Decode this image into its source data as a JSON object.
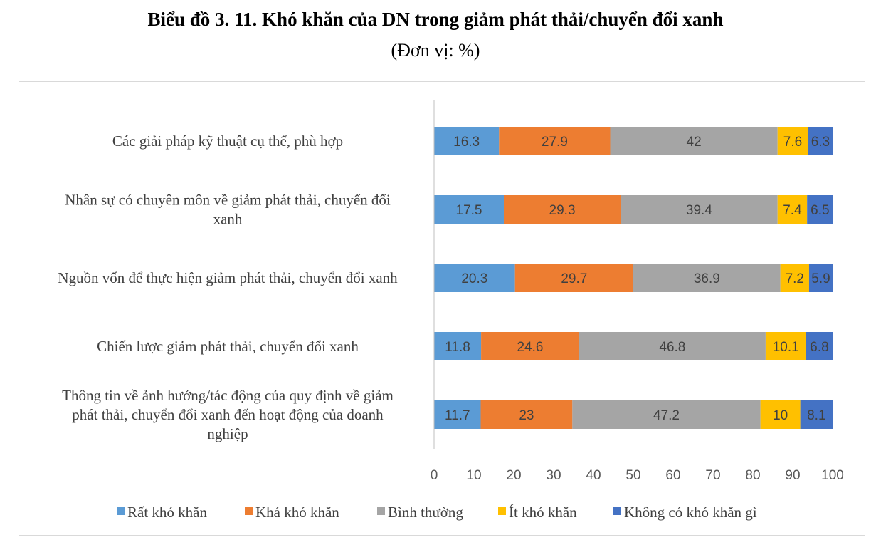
{
  "header": {
    "title": "Biểu đồ 3. 11. Khó khăn của DN trong giảm phát thải/chuyển đổi xanh",
    "subtitle": "(Đơn vị: %)"
  },
  "chart_data": {
    "type": "bar",
    "orientation": "horizontal",
    "stacked": true,
    "title": "Biểu đồ 3. 11. Khó khăn của DN trong giảm phát thải/chuyển đổi xanh",
    "subtitle": "(Đơn vị: %)",
    "xlabel": "",
    "ylabel": "",
    "xlim": [
      0,
      100
    ],
    "xticks": [
      0,
      10,
      20,
      30,
      40,
      50,
      60,
      70,
      80,
      90,
      100
    ],
    "grid": false,
    "legend_position": "bottom",
    "categories": [
      {
        "lines": [
          "Các giải pháp kỹ thuật cụ thể, phù hợp"
        ]
      },
      {
        "lines": [
          "Nhân sự có chuyên môn về giảm phát thải, chuyển đổi",
          "xanh"
        ]
      },
      {
        "lines": [
          "Nguồn vốn để thực hiện giảm phát thải, chuyển đổi xanh"
        ]
      },
      {
        "lines": [
          "Chiến lược giảm phát thải, chuyển đổi xanh"
        ]
      },
      {
        "lines": [
          "Thông tin về ảnh hưởng/tác động của quy định về giảm",
          "phát thải, chuyển đổi xanh đến hoạt động của doanh",
          "nghiệp"
        ]
      }
    ],
    "series": [
      {
        "name": "Rất khó khăn",
        "color": "#5b9bd5",
        "label_color": "#404040",
        "values": [
          16.3,
          17.5,
          20.3,
          11.8,
          11.7
        ]
      },
      {
        "name": "Khá khó khăn",
        "color": "#ed7d31",
        "label_color": "#404040",
        "values": [
          27.9,
          29.3,
          29.7,
          24.6,
          23
        ]
      },
      {
        "name": "Bình thường",
        "color": "#a5a5a5",
        "label_color": "#404040",
        "values": [
          42,
          39.4,
          36.9,
          46.8,
          47.2
        ]
      },
      {
        "name": "Ít khó khăn",
        "color": "#ffc000",
        "label_color": "#404040",
        "values": [
          7.6,
          7.4,
          7.2,
          10.1,
          10
        ]
      },
      {
        "name": "Không có khó khăn gì",
        "color": "#4472c4",
        "label_color": "#404040",
        "values": [
          6.3,
          6.5,
          5.9,
          6.8,
          8.1
        ]
      }
    ]
  }
}
